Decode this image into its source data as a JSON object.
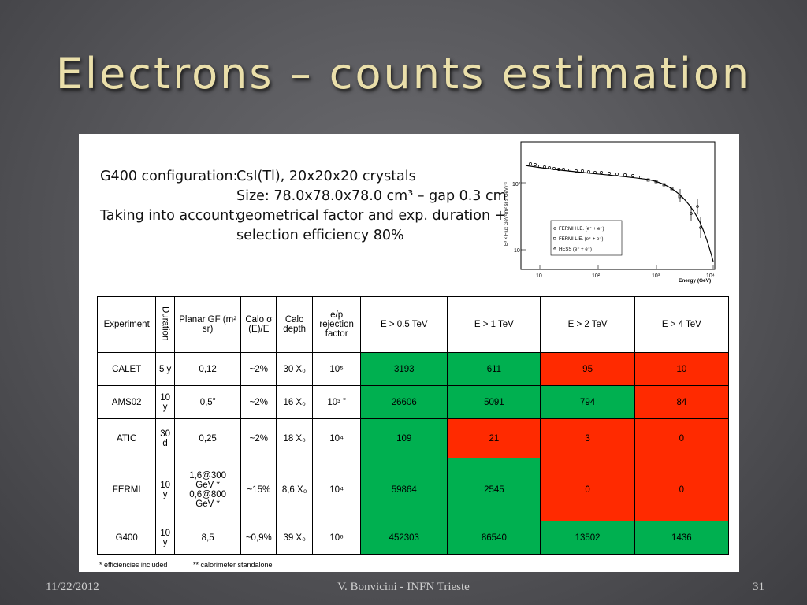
{
  "slide": {
    "title": "Electrons – counts estimation",
    "footer_date": "11/22/2012",
    "footer_author": "V. Bonvicini - INFN Trieste",
    "page_number": "31"
  },
  "config": {
    "line1_label": "G400 configuration:",
    "line1_value": "CsI(Tl), 20x20x20  crystals",
    "line2_value": "Size: 78.0x78.0x78.0 cm³ – gap 0.3 cm",
    "line3_label": "Taking into account:",
    "line3_value": "geometrical factor and  exp. duration +",
    "line4_value": "selection efficiency 80%"
  },
  "plot": {
    "ylabel": "E³ × Flux GeV²(m² sr s GeV)⁻¹",
    "xlabel": "Energy (GeV)",
    "yticks": [
      "10²",
      "10"
    ],
    "xticks": [
      "10",
      "10²",
      "10³",
      "10⁴"
    ],
    "legend": [
      "FERMI H.E. (e⁺ + e⁻)",
      "FERMI L.E. (e⁺ + e⁻)",
      "HESS (e⁺ + e⁻)"
    ]
  },
  "table": {
    "headers": {
      "experiment": "Experiment",
      "duration": "Duration",
      "gf": "Planar GF (m² sr)",
      "calo_sigma": "Calo σ (E)/E",
      "calo_depth": "Calo depth",
      "rejection": "e/p rejection factor",
      "e05": "E > 0.5 TeV",
      "e1": "E > 1 TeV",
      "e2": "E > 2 TeV",
      "e4": "E > 4 TeV"
    },
    "rows": [
      {
        "experiment": "CALET",
        "duration": "5 y",
        "gf": "0,12",
        "sigma": "~2%",
        "depth": "30 X₀",
        "rejection": "10⁵",
        "e05": "3193",
        "e1": "611",
        "e2": "95",
        "e4": "10"
      },
      {
        "experiment": "AMS02",
        "duration": "10 y",
        "gf": "0,5ˮ",
        "sigma": "~2%",
        "depth": "16 X₀",
        "rejection": "10³ ˮ",
        "e05": "26606",
        "e1": "5091",
        "e2": "794",
        "e4": "84"
      },
      {
        "experiment": "ATIC",
        "duration": "30 d",
        "gf": "0,25",
        "sigma": "~2%",
        "depth": "18 X₀",
        "rejection": "10⁴",
        "e05": "109",
        "e1": "21",
        "e2": "3",
        "e4": "0"
      },
      {
        "experiment": "FERMI",
        "duration": "10 y",
        "gf": "1,6@300 GeV * 0,6@800 GeV *",
        "sigma": "~15%",
        "depth": "8,6 X₀",
        "rejection": "10⁴",
        "e05": "59864",
        "e1": "2545",
        "e2": "0",
        "e4": "0"
      },
      {
        "experiment": "G400",
        "duration": "10 y",
        "gf": "8,5",
        "sigma": "~0,9%",
        "depth": "39 X₀",
        "rejection": "10⁶",
        "e05": "452303",
        "e1": "86540",
        "e2": "13502",
        "e4": "1436"
      }
    ],
    "colors": {
      "green": "#00b050",
      "red": "#ff2a00"
    }
  },
  "notes": {
    "left": "* efficiencies included",
    "right": "** calorimeter standalone"
  }
}
